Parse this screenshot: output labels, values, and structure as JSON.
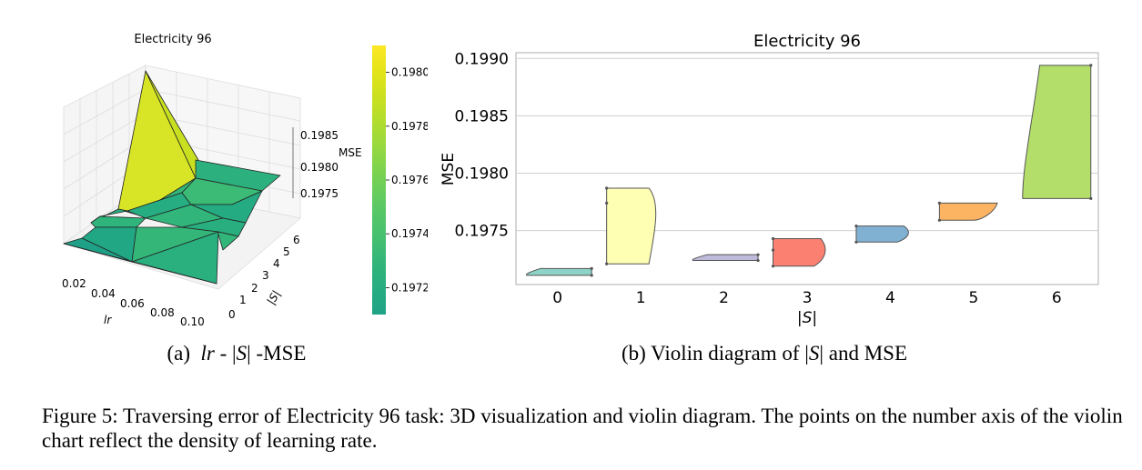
{
  "chart_data": [
    {
      "type": "surface3d",
      "title": "Electricity 96",
      "xlabel": "lr",
      "ylabel": "|S|",
      "zlabel": "MSE",
      "x_ticks": [
        "0.02",
        "0.04",
        "0.06",
        "0.08",
        "0.10"
      ],
      "y_ticks": [
        "0",
        "1",
        "2",
        "3",
        "4",
        "5",
        "6"
      ],
      "z_ticks": [
        "0.1975",
        "0.1980",
        "0.1985"
      ],
      "colorbar_ticks": [
        "0.1972",
        "0.1974",
        "0.1976",
        "0.1978",
        "0.1980"
      ],
      "colorbar_range": [
        0.1971,
        0.1981
      ],
      "colormap": [
        "#20a386",
        "#26ad81",
        "#34b679",
        "#48c16e",
        "#5ac864",
        "#74d055",
        "#8fd744",
        "#addc30",
        "#c8e020",
        "#e2e418",
        "#fde725"
      ]
    },
    {
      "type": "violin",
      "title": "Electricity 96",
      "xlabel": "|S|",
      "ylabel": "MSE",
      "categories": [
        "0",
        "1",
        "2",
        "3",
        "4",
        "5",
        "6"
      ],
      "y_ticks": [
        "0.1975",
        "0.1980",
        "0.1985",
        "0.1990"
      ],
      "ylim": [
        0.19703,
        0.19905
      ],
      "grid": true,
      "series": [
        {
          "min": 0.19711,
          "max": 0.19717,
          "points": [
            0.19711,
            0.19717
          ],
          "color": "#8dd3c7"
        },
        {
          "min": 0.19721,
          "max": 0.19787,
          "points": [
            0.19721,
            0.19774,
            0.19787
          ],
          "color": "#ffffb3"
        },
        {
          "min": 0.19724,
          "max": 0.19729,
          "points": [
            0.19724,
            0.19729
          ],
          "color": "#bebada"
        },
        {
          "min": 0.19719,
          "max": 0.19743,
          "points": [
            0.19719,
            0.19733,
            0.19743
          ],
          "color": "#fb8072"
        },
        {
          "min": 0.1974,
          "max": 0.19754,
          "points": [
            0.1974,
            0.19754
          ],
          "color": "#80b1d3"
        },
        {
          "min": 0.19759,
          "max": 0.19774,
          "points": [
            0.19759,
            0.19774
          ],
          "color": "#fdb462"
        },
        {
          "min": 0.19778,
          "max": 0.19894,
          "points": [
            0.19778,
            0.19894
          ],
          "color": "#b3de69"
        }
      ]
    }
  ],
  "captions": {
    "a_prefix": "(a)",
    "a_var": "lr",
    "a_mid": " - |",
    "a_var2": "S",
    "a_suffix": "| -MSE",
    "b_prefix": "(b)",
    "b_text": " Violin diagram of |",
    "b_var": "S",
    "b_suffix": "| and MSE",
    "figure": "Figure 5: Traversing error of Electricity 96 task: 3D visualization and violin diagram. The points on the number axis of the violin chart reflect the density of learning rate."
  }
}
